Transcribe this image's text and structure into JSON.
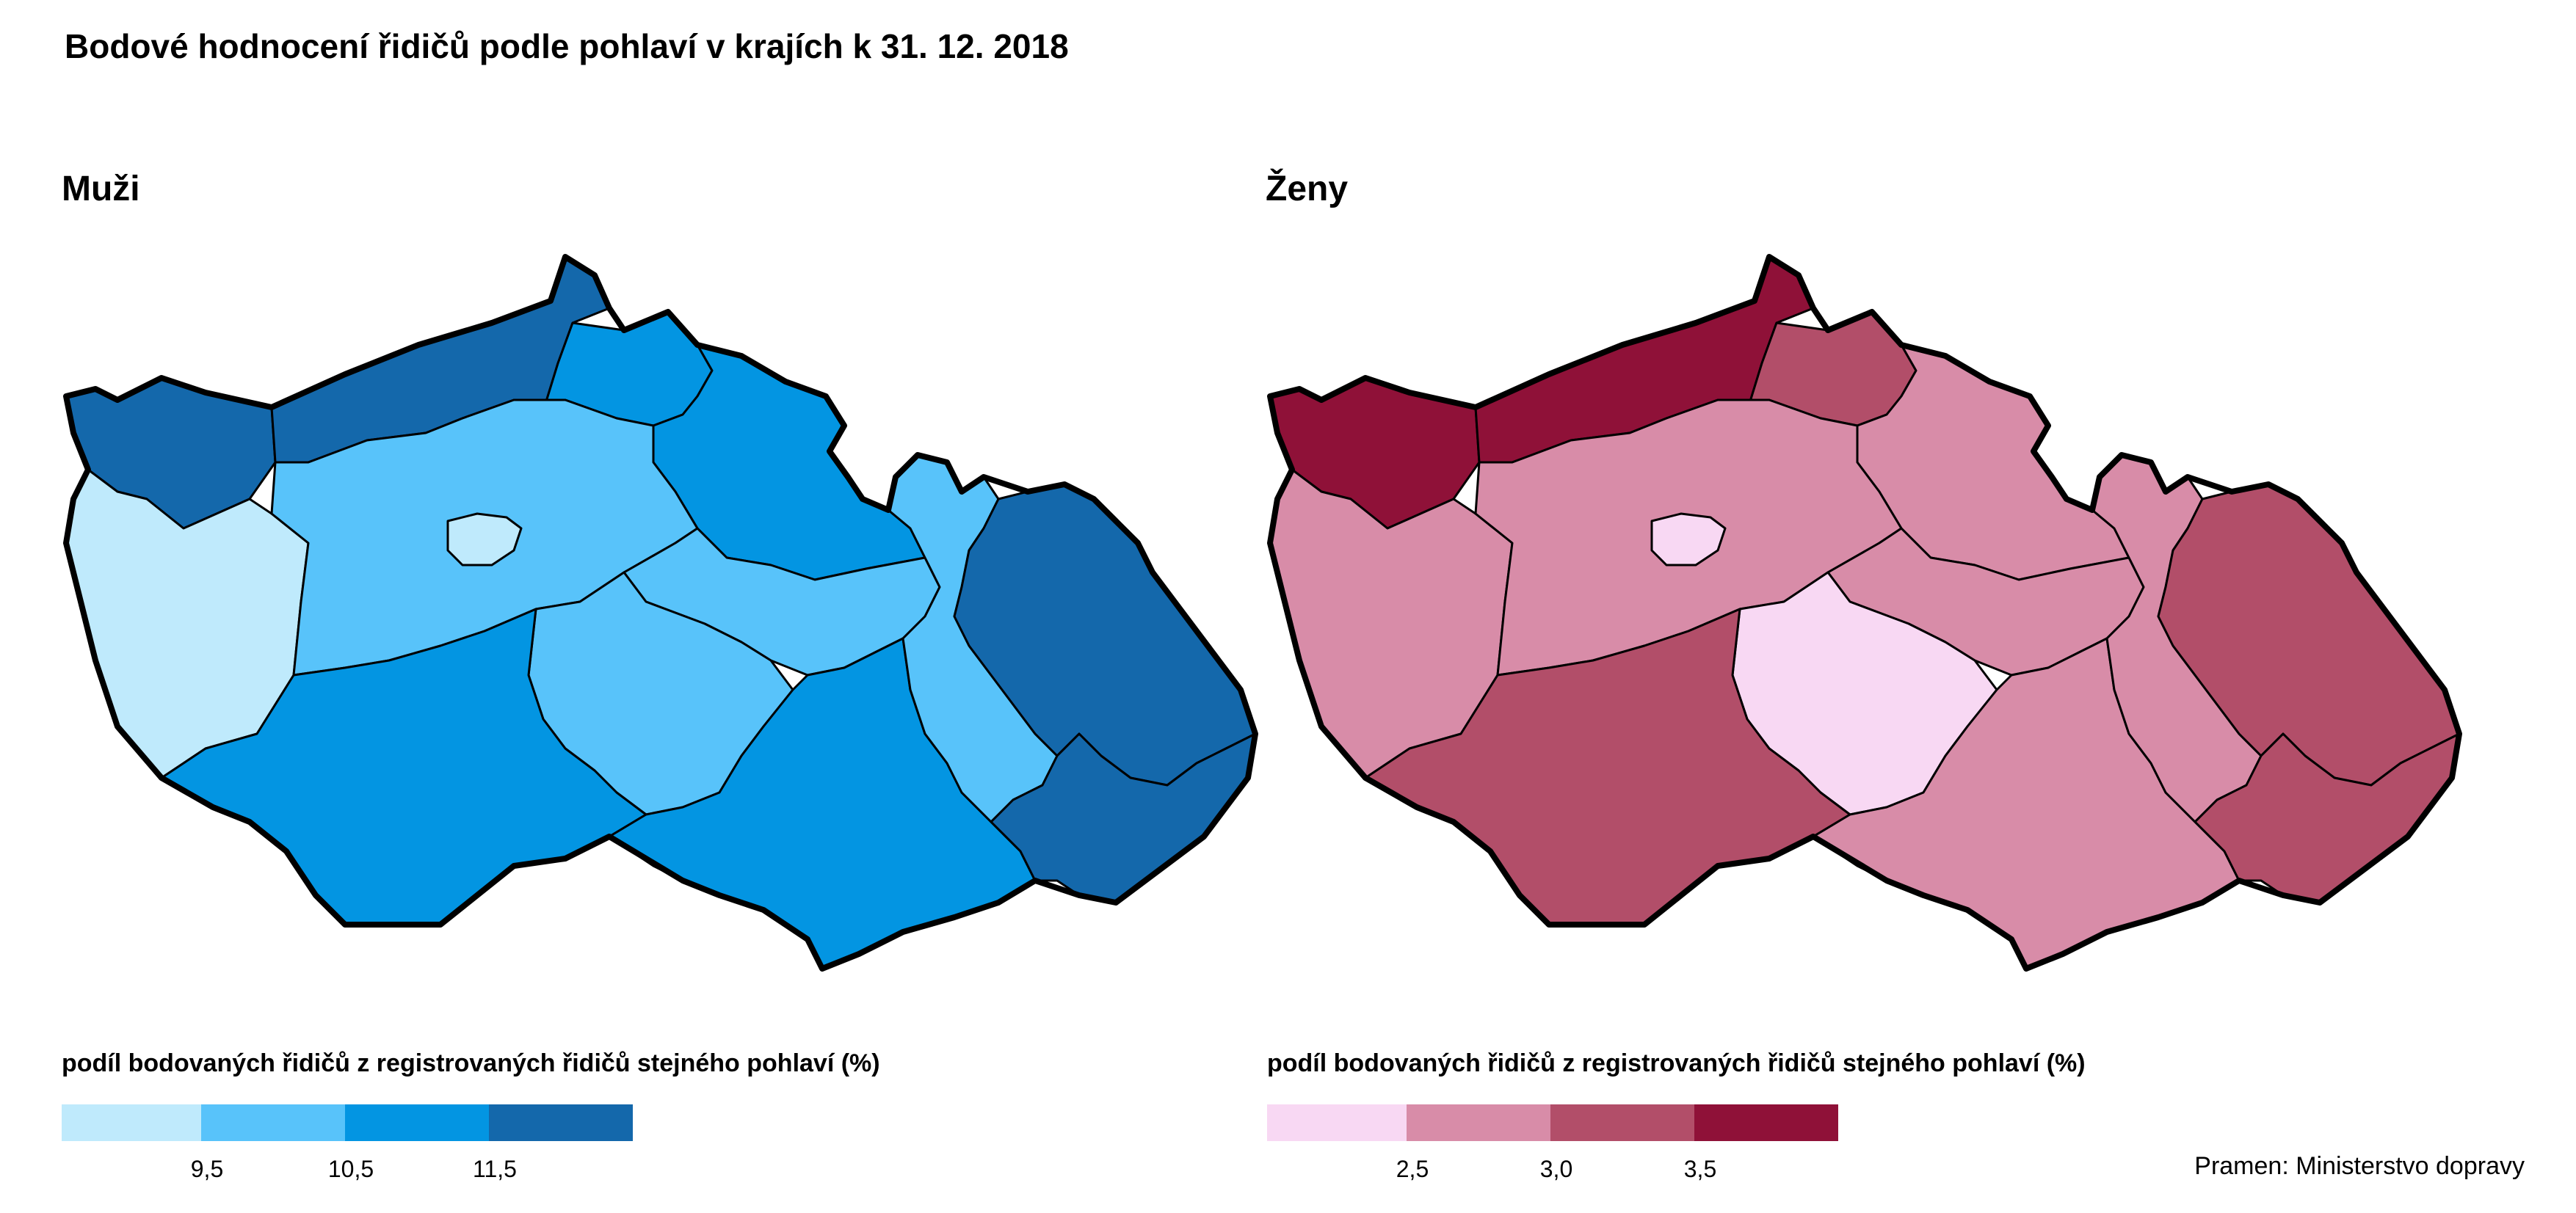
{
  "title": "Bodové hodnocení řidičů podle pohlaví v krajích k 31. 12. 2018",
  "panels": [
    {
      "id": "muzi",
      "title": "Muži",
      "legend_title": "podíl bodovaných řidičů z registrovaných řidičů stejného pohlaví (%)",
      "legend_colors": [
        "#bfeafc",
        "#58c3fa",
        "#0395e2",
        "#1468ab"
      ],
      "legend_breaks": [
        "9,5",
        "10,5",
        "11,5"
      ],
      "regions": {
        "Karlovarský": 4,
        "Ústecký": 4,
        "Liberecký": 3,
        "Královéhradecký": 3,
        "Plzeňský": 1,
        "Středočeský": 2,
        "Praha": 1,
        "Pardubický": 2,
        "Vysočina": 2,
        "Jihočeský": 3,
        "Jihomoravský": 3,
        "Olomoucký": 2,
        "Moravskoslezský": 4,
        "Zlínský": 4
      }
    },
    {
      "id": "zeny",
      "title": "Ženy",
      "legend_title": "podíl bodovaných řidičů z registrovaných řidičů stejného pohlaví (%)",
      "legend_colors": [
        "#f8d8f3",
        "#d88ca8",
        "#b24e69",
        "#8f1138"
      ],
      "legend_breaks": [
        "2,5",
        "3,0",
        "3,5"
      ],
      "regions": {
        "Karlovarský": 4,
        "Ústecký": 4,
        "Liberecký": 3,
        "Královéhradecký": 2,
        "Plzeňský": 2,
        "Středočeský": 2,
        "Praha": 1,
        "Pardubický": 2,
        "Vysočina": 1,
        "Jihočeský": 3,
        "Jihomoravský": 2,
        "Olomoucký": 2,
        "Moravskoslezský": 3,
        "Zlínský": 3
      }
    }
  ],
  "source": "Pramen: Ministerstvo dopravy"
}
